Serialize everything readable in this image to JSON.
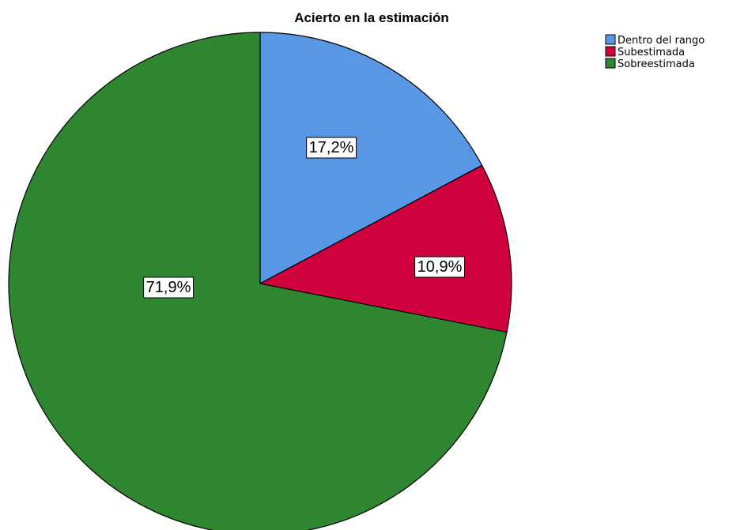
{
  "chart_data": {
    "type": "pie",
    "title": "Acierto en la estimación",
    "slices": [
      {
        "label": "Dentro del rango",
        "value": 17.2,
        "display": "17,2%",
        "color": "#5797e4"
      },
      {
        "label": "Subestimada",
        "value": 10.9,
        "display": "10,9%",
        "color": "#d0023d"
      },
      {
        "label": "Sobreestimada",
        "value": 71.9,
        "display": "71,9%",
        "color": "#2e8630"
      }
    ],
    "start_angle": "12 o'clock",
    "direction": "clockwise",
    "legend_position": "top-right",
    "slice_border_color": "#000000"
  }
}
